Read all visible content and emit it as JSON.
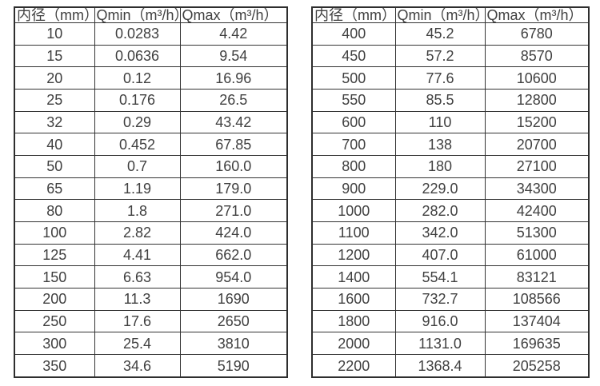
{
  "page": {
    "background_color": "#ffffff",
    "text_color": "#404040",
    "border_color": "#333333"
  },
  "chart_data": [
    {
      "type": "table",
      "name": "flow-spec-small-diameters",
      "headers": [
        "内径（mm）",
        "Qmin（m³/h）",
        "Qmax（m³/h）"
      ],
      "rows": [
        [
          "10",
          "0.0283",
          "4.42"
        ],
        [
          "15",
          "0.0636",
          "9.54"
        ],
        [
          "20",
          "0.12",
          "16.96"
        ],
        [
          "25",
          "0.176",
          "26.5"
        ],
        [
          "32",
          "0.29",
          "43.42"
        ],
        [
          "40",
          "0.452",
          "67.85"
        ],
        [
          "50",
          "0.7",
          "160.0"
        ],
        [
          "65",
          "1.19",
          "179.0"
        ],
        [
          "80",
          "1.8",
          "271.0"
        ],
        [
          "100",
          "2.82",
          "424.0"
        ],
        [
          "125",
          "4.41",
          "662.0"
        ],
        [
          "150",
          "6.63",
          "954.0"
        ],
        [
          "200",
          "11.3",
          "1690"
        ],
        [
          "250",
          "17.6",
          "2650"
        ],
        [
          "300",
          "25.4",
          "3810"
        ],
        [
          "350",
          "34.6",
          "5190"
        ]
      ]
    },
    {
      "type": "table",
      "name": "flow-spec-large-diameters",
      "headers": [
        "内径（mm）",
        "Qmin（m³/h）",
        "Qmax（m³/h）"
      ],
      "rows": [
        [
          "400",
          "45.2",
          "6780"
        ],
        [
          "450",
          "57.2",
          "8570"
        ],
        [
          "500",
          "77.6",
          "10600"
        ],
        [
          "550",
          "85.5",
          "12800"
        ],
        [
          "600",
          "110",
          "15200"
        ],
        [
          "700",
          "138",
          "20700"
        ],
        [
          "800",
          "180",
          "27100"
        ],
        [
          "900",
          "229.0",
          "34300"
        ],
        [
          "1000",
          "282.0",
          "42400"
        ],
        [
          "1100",
          "342.0",
          "51300"
        ],
        [
          "1200",
          "407.0",
          "61000"
        ],
        [
          "1400",
          "554.1",
          "83121"
        ],
        [
          "1600",
          "732.7",
          "108566"
        ],
        [
          "1800",
          "916.0",
          "137404"
        ],
        [
          "2000",
          "1131.0",
          "169635"
        ],
        [
          "2200",
          "1368.4",
          "205258"
        ]
      ]
    }
  ]
}
